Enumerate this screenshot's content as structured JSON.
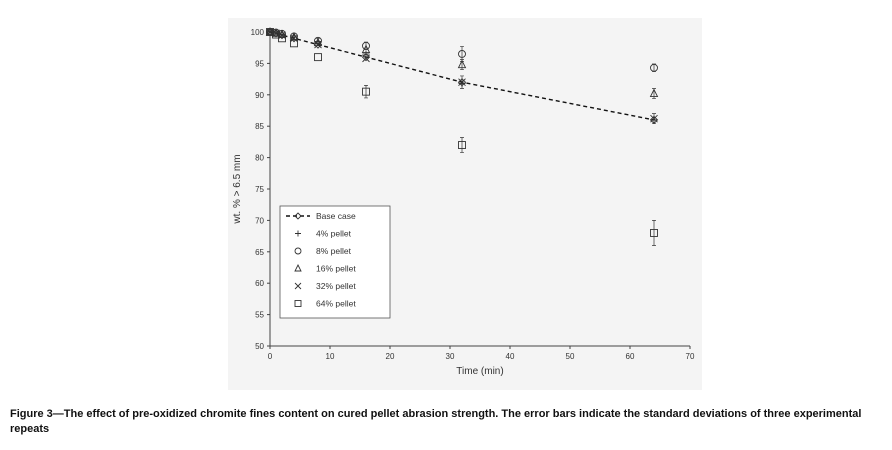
{
  "chart_data": {
    "type": "scatter",
    "title": "",
    "xlabel": "Time (min)",
    "ylabel": "wt. % > 6.5 mm",
    "xlim": [
      0,
      70
    ],
    "ylim": [
      50,
      100
    ],
    "xticks": [
      "0",
      "10",
      "20",
      "30",
      "40",
      "50",
      "60",
      "70"
    ],
    "yticks": [
      "50",
      "55",
      "60",
      "65",
      "70",
      "75",
      "80",
      "85",
      "90",
      "95",
      "100"
    ],
    "legend_position": "lower-left",
    "series": [
      {
        "name": "Base case",
        "marker": "diamond",
        "line": "dashed",
        "x": [
          0,
          1,
          2,
          4,
          8,
          16,
          32,
          64
        ],
        "y": [
          100,
          99.8,
          99.5,
          99,
          98,
          96,
          92,
          86
        ]
      },
      {
        "name": "4% pellet",
        "marker": "plus",
        "x": [
          0,
          1,
          2,
          4,
          8,
          16,
          32,
          64
        ],
        "y": [
          100,
          99.8,
          99.5,
          99.2,
          98.5,
          96.5,
          91.8,
          86
        ]
      },
      {
        "name": "8% pellet",
        "marker": "circle",
        "x": [
          0,
          1,
          2,
          4,
          8,
          16,
          32,
          64
        ],
        "y": [
          100,
          99.9,
          99.7,
          99.3,
          98.6,
          97.8,
          96.5,
          94.3
        ],
        "err": [
          0,
          0,
          0,
          0,
          0.4,
          0.6,
          1.2,
          0.6
        ]
      },
      {
        "name": "16% pellet",
        "marker": "triangle",
        "x": [
          0,
          1,
          2,
          4,
          8,
          16,
          32,
          64
        ],
        "y": [
          100,
          99.8,
          99.6,
          99.2,
          98.3,
          97.2,
          94.8,
          90.2
        ],
        "err": [
          0,
          0,
          0,
          0,
          0,
          0,
          0.8,
          0.8
        ]
      },
      {
        "name": "32% pellet",
        "marker": "x",
        "x": [
          0,
          1,
          2,
          4,
          8,
          16,
          32,
          64
        ],
        "y": [
          100,
          99.8,
          99.5,
          99,
          98,
          95.8,
          92,
          86.2
        ],
        "err": [
          0,
          0,
          0,
          0,
          0,
          0,
          1,
          0.8
        ]
      },
      {
        "name": "64% pellet",
        "marker": "square",
        "x": [
          0,
          1,
          2,
          4,
          8,
          16,
          32,
          64
        ],
        "y": [
          100,
          99.6,
          99,
          98.2,
          96,
          90.5,
          82,
          68
        ],
        "err": [
          0,
          0,
          0,
          0,
          0,
          1,
          1.2,
          2
        ]
      }
    ]
  },
  "caption": {
    "text": "Figure 3—The effect of pre-oxidized chromite fines content on cured pellet abrasion strength. The error bars indicate the standard deviations of three experimental repeats"
  },
  "colors": {
    "panel": "#f4f4f4",
    "ink": "#333333",
    "axis": "#444444"
  }
}
